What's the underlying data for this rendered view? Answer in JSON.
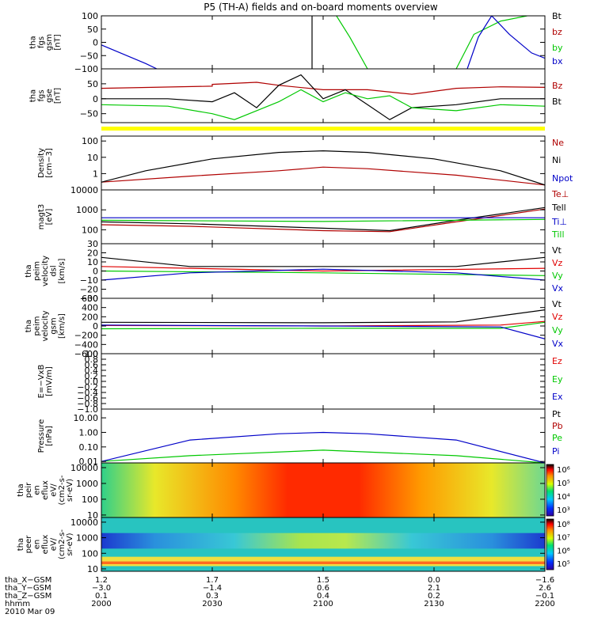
{
  "title": "P5 (TH-A) fields and on-board moments overview",
  "chart_data": [
    {
      "type": "line",
      "id": "fgs_gsm",
      "ylabel": [
        "tha",
        "fgs",
        "gsm",
        "[nT]"
      ],
      "ylim": [
        -100,
        100
      ],
      "yticks": [
        {
          "v": 100,
          "t": "100"
        },
        {
          "v": 50,
          "t": "50"
        },
        {
          "v": 0,
          "t": "0"
        },
        {
          "v": -50,
          "t": "−50"
        },
        {
          "v": -100,
          "t": "−100"
        }
      ],
      "series": [
        {
          "name": "Bt",
          "color": "#000000",
          "points": [
            [
              0.475,
              100
            ],
            [
              0.475,
              -100
            ]
          ]
        },
        {
          "name": "bz",
          "color": "#b00000",
          "points": []
        },
        {
          "name": "by",
          "color": "#00c800",
          "points": [
            [
              0.53,
              100
            ],
            [
              0.56,
              20
            ],
            [
              0.6,
              -100
            ],
            null,
            [
              0.8,
              -100
            ],
            [
              0.84,
              30
            ],
            [
              0.9,
              80
            ],
            [
              0.96,
              100
            ]
          ]
        },
        {
          "name": "bx",
          "color": "#0000c8",
          "points": [
            [
              0,
              -10
            ],
            [
              0.05,
              -45
            ],
            [
              0.1,
              -80
            ],
            [
              0.125,
              -100
            ],
            null,
            [
              0.825,
              -100
            ],
            [
              0.85,
              20
            ],
            [
              0.88,
              100
            ],
            null,
            [
              0.88,
              100
            ],
            [
              0.92,
              30
            ],
            [
              0.97,
              -40
            ],
            [
              1,
              -60
            ]
          ]
        }
      ]
    },
    {
      "type": "line",
      "id": "fgs_gse",
      "ylabel": [
        "tha",
        "fgs",
        "gse",
        "[nT]"
      ],
      "ylim": [
        -80,
        100
      ],
      "yticks": [
        {
          "v": 50,
          "t": "50"
        },
        {
          "v": 0,
          "t": "0"
        },
        {
          "v": -50,
          "t": "−50"
        }
      ],
      "series": [
        {
          "name": "Bz",
          "color": "#b00000",
          "points": [
            [
              0,
              35
            ],
            [
              0.25,
              42
            ],
            [
              0.25,
              48
            ],
            [
              0.35,
              55
            ],
            [
              0.4,
              45
            ],
            [
              0.5,
              30
            ],
            [
              0.6,
              30
            ],
            [
              0.7,
              15
            ],
            [
              0.8,
              35
            ],
            [
              0.9,
              40
            ],
            [
              1,
              38
            ]
          ]
        },
        {
          "name": "Bt",
          "color": "#000000",
          "points": [
            [
              0,
              0
            ],
            [
              0.15,
              0
            ],
            [
              0.25,
              -10
            ],
            [
              0.3,
              20
            ],
            [
              0.35,
              -30
            ],
            [
              0.4,
              45
            ],
            [
              0.45,
              80
            ],
            [
              0.5,
              0
            ],
            [
              0.55,
              30
            ],
            [
              0.6,
              -20
            ],
            [
              0.65,
              -70
            ],
            [
              0.7,
              -30
            ],
            [
              0.8,
              -20
            ],
            [
              0.9,
              0
            ],
            [
              1,
              0
            ]
          ]
        },
        {
          "name": "Bx",
          "color": "#00c800",
          "points": [
            [
              0,
              -20
            ],
            [
              0.15,
              -25
            ],
            [
              0.25,
              -50
            ],
            [
              0.3,
              -70
            ],
            [
              0.35,
              -40
            ],
            [
              0.4,
              -10
            ],
            [
              0.45,
              30
            ],
            [
              0.5,
              -10
            ],
            [
              0.55,
              20
            ],
            [
              0.6,
              0
            ],
            [
              0.65,
              10
            ],
            [
              0.7,
              -30
            ],
            [
              0.8,
              -40
            ],
            [
              0.9,
              -20
            ],
            [
              1,
              -25
            ]
          ]
        }
      ],
      "flag_color": "#ffff00"
    },
    {
      "type": "line",
      "id": "density",
      "scale": "log",
      "ylabel": [
        "Density",
        "[cm−3]"
      ],
      "ylim": [
        0.1,
        200
      ],
      "yticks": [
        {
          "v": 100,
          "t": "100"
        },
        {
          "v": 10,
          "t": "10"
        },
        {
          "v": 1,
          "t": "1"
        }
      ],
      "series": [
        {
          "name": "Ne",
          "color": "#b00000",
          "points": [
            [
              0,
              0.3
            ],
            [
              0.2,
              0.7
            ],
            [
              0.4,
              1.5
            ],
            [
              0.5,
              2.5
            ],
            [
              0.6,
              2.0
            ],
            [
              0.8,
              0.8
            ],
            [
              1,
              0.2
            ]
          ]
        },
        {
          "name": "Ni",
          "color": "#000000",
          "points": [
            [
              0,
              0.3
            ],
            [
              0.1,
              1.5
            ],
            [
              0.25,
              8
            ],
            [
              0.4,
              20
            ],
            [
              0.5,
              25
            ],
            [
              0.6,
              20
            ],
            [
              0.75,
              8
            ],
            [
              0.9,
              1.5
            ],
            [
              1,
              0.2
            ]
          ]
        },
        {
          "name": "Npot",
          "color": "#0000c8",
          "points": []
        }
      ]
    },
    {
      "type": "line",
      "id": "temperature",
      "scale": "log",
      "ylabel": [
        "magt3",
        "[eV]"
      ],
      "ylim": [
        20,
        10000
      ],
      "yticks": [
        {
          "v": 10000,
          "t": "10000"
        },
        {
          "v": 1000,
          "t": "1000"
        },
        {
          "v": 100,
          "t": "100"
        }
      ],
      "series": [
        {
          "name": "Te⊥",
          "color": "#b00000",
          "points": [
            [
              0,
              180
            ],
            [
              0.2,
              150
            ],
            [
              0.5,
              90
            ],
            [
              0.65,
              80
            ],
            [
              0.8,
              250
            ],
            [
              1,
              1100
            ]
          ]
        },
        {
          "name": "Tell",
          "color": "#000000",
          "points": [
            [
              0,
              250
            ],
            [
              0.2,
              200
            ],
            [
              0.5,
              120
            ],
            [
              0.65,
              90
            ],
            [
              0.8,
              300
            ],
            [
              1,
              1300
            ]
          ]
        },
        {
          "name": "Ti⊥",
          "color": "#0000c8",
          "points": [
            [
              0,
              400
            ],
            [
              1,
              400
            ]
          ]
        },
        {
          "name": "Till",
          "color": "#00c800",
          "points": [
            [
              0,
              300
            ],
            [
              0.5,
              260
            ],
            [
              1,
              330
            ]
          ]
        }
      ]
    },
    {
      "type": "line",
      "id": "velocity_dsl",
      "ylabel": [
        "tha",
        "peim",
        "velocity",
        "dsl",
        "[km/s]"
      ],
      "ylim": [
        -30,
        30
      ],
      "yticks": [
        {
          "v": 30,
          "t": "30"
        },
        {
          "v": 20,
          "t": "20"
        },
        {
          "v": 10,
          "t": "10"
        },
        {
          "v": 0,
          "t": "0"
        },
        {
          "v": -10,
          "t": "−10"
        },
        {
          "v": -20,
          "t": "−20"
        },
        {
          "v": -30,
          "t": "−30"
        }
      ],
      "series": [
        {
          "name": "Vt",
          "color": "#000000",
          "points": [
            [
              0,
              15
            ],
            [
              0.2,
              5
            ],
            [
              0.5,
              5
            ],
            [
              0.8,
              5
            ],
            [
              1,
              15
            ]
          ]
        },
        {
          "name": "Vz",
          "color": "#e00000",
          "points": [
            [
              0,
              5
            ],
            [
              0.5,
              0
            ],
            [
              1,
              3
            ]
          ]
        },
        {
          "name": "Vy",
          "color": "#00c800",
          "points": [
            [
              0,
              0
            ],
            [
              0.5,
              -2
            ],
            [
              1,
              -5
            ]
          ]
        },
        {
          "name": "Vx",
          "color": "#0000c8",
          "points": [
            [
              0,
              -10
            ],
            [
              0.2,
              -2
            ],
            [
              0.5,
              2
            ],
            [
              0.8,
              -2
            ],
            [
              1,
              -10
            ]
          ]
        }
      ]
    },
    {
      "type": "line",
      "id": "velocity_gsm",
      "ylabel": [
        "tha",
        "peim",
        "velocity",
        "gsm",
        "[km/s]"
      ],
      "ylim": [
        -600,
        600
      ],
      "yticks": [
        {
          "v": 600,
          "t": "600"
        },
        {
          "v": 400,
          "t": "400"
        },
        {
          "v": 200,
          "t": "200"
        },
        {
          "v": 0,
          "t": "0"
        },
        {
          "v": -200,
          "t": "−200"
        },
        {
          "v": -400,
          "t": "−400"
        },
        {
          "v": -600,
          "t": "−600"
        }
      ],
      "series": [
        {
          "name": "Vt",
          "color": "#000000",
          "points": [
            [
              0,
              80
            ],
            [
              0.5,
              70
            ],
            [
              0.8,
              90
            ],
            [
              1,
              350
            ]
          ]
        },
        {
          "name": "Vz",
          "color": "#e00000",
          "points": [
            [
              0,
              10
            ],
            [
              0.5,
              0
            ],
            [
              0.9,
              20
            ],
            [
              1,
              100
            ]
          ]
        },
        {
          "name": "Vy",
          "color": "#00c800",
          "points": [
            [
              0,
              -60
            ],
            [
              0.5,
              -50
            ],
            [
              0.9,
              -50
            ],
            [
              1,
              80
            ]
          ]
        },
        {
          "name": "Vx",
          "color": "#0000c8",
          "points": [
            [
              0,
              20
            ],
            [
              0.5,
              0
            ],
            [
              0.9,
              -20
            ],
            [
              1,
              -280
            ]
          ]
        }
      ]
    },
    {
      "type": "line",
      "id": "efield",
      "ylabel": [
        "E=−VxB",
        "[mV/m]"
      ],
      "ylim": [
        -1,
        1
      ],
      "yticks": [
        {
          "v": 1,
          "t": "1.0"
        },
        {
          "v": 0.8,
          "t": "0.8"
        },
        {
          "v": 0.6,
          "t": "0.6"
        },
        {
          "v": 0.4,
          "t": "0.4"
        },
        {
          "v": 0.2,
          "t": "0.2"
        },
        {
          "v": 0,
          "t": "0.0"
        },
        {
          "v": -0.2,
          "t": "−0.2"
        },
        {
          "v": -0.4,
          "t": "−0.4"
        },
        {
          "v": -0.6,
          "t": "−0.6"
        },
        {
          "v": -0.8,
          "t": "−0.8"
        },
        {
          "v": -1,
          "t": "−1.0"
        }
      ],
      "series": [
        {
          "name": "Ez",
          "color": "#e00000",
          "points": []
        },
        {
          "name": "Ey",
          "color": "#00c800",
          "points": []
        },
        {
          "name": "Ex",
          "color": "#0000c8",
          "points": []
        }
      ]
    },
    {
      "type": "line",
      "id": "pressure",
      "scale": "log",
      "ylabel": [
        "Pressure",
        "[nPa]"
      ],
      "ylim": [
        0.008,
        40
      ],
      "yticks": [
        {
          "v": 10,
          "t": "10.00"
        },
        {
          "v": 1,
          "t": "1.00"
        },
        {
          "v": 0.1,
          "t": "0.10"
        },
        {
          "v": 0.01,
          "t": "0.01"
        }
      ],
      "series": [
        {
          "name": "Pt",
          "color": "#000000",
          "points": []
        },
        {
          "name": "Pb",
          "color": "#b00000",
          "points": []
        },
        {
          "name": "Pe",
          "color": "#00c800",
          "points": [
            [
              0,
              0.01
            ],
            [
              0.2,
              0.025
            ],
            [
              0.5,
              0.06
            ],
            [
              0.8,
              0.025
            ],
            [
              1,
              0.008
            ]
          ]
        },
        {
          "name": "Pi",
          "color": "#0000c8",
          "points": [
            [
              0,
              0.01
            ],
            [
              0.2,
              0.3
            ],
            [
              0.4,
              0.8
            ],
            [
              0.5,
              1.0
            ],
            [
              0.6,
              0.8
            ],
            [
              0.8,
              0.3
            ],
            [
              1,
              0.008
            ]
          ]
        }
      ]
    },
    {
      "type": "heatmap",
      "id": "peir_spec",
      "ylabel": [
        "tha",
        "peir",
        "en",
        "eflux",
        "eV/",
        "(cm2-s-",
        "sr-eV)"
      ],
      "ylim": [
        7,
        20000
      ],
      "yticks": [
        {
          "v": 10000,
          "t": "10000"
        },
        {
          "v": 1000,
          "t": "1000"
        },
        {
          "v": 100,
          "t": "100"
        },
        {
          "v": 10,
          "t": "10"
        }
      ],
      "colorbar": {
        "labels": [
          "10⁶",
          "10⁵",
          "10⁴",
          "10³"
        ],
        "range": [
          "10²",
          "10⁶"
        ]
      }
    },
    {
      "type": "heatmap",
      "id": "peer_spec",
      "ylabel": [
        "tha",
        "peer",
        "en",
        "eflux",
        "eV/",
        "(cm2-s-",
        "sr-eV)"
      ],
      "ylim": [
        7,
        20000
      ],
      "yticks": [
        {
          "v": 10000,
          "t": "10000"
        },
        {
          "v": 1000,
          "t": "1000"
        },
        {
          "v": 100,
          "t": "100"
        },
        {
          "v": 10,
          "t": "10"
        }
      ],
      "colorbar": {
        "labels": [
          "10⁸",
          "10⁷",
          "10⁶",
          "10⁵"
        ],
        "range": [
          "10⁵",
          "10⁸"
        ]
      }
    }
  ],
  "x_axis": {
    "rows": [
      {
        "label": "tha_X−GSM",
        "values": [
          "1.2",
          "1.7",
          "1.5",
          "0.0",
          "−1.6"
        ]
      },
      {
        "label": "tha_Y−GSM",
        "values": [
          "−3.0",
          "−1.4",
          "0.6",
          "2.1",
          "2.6"
        ]
      },
      {
        "label": "tha_Z−GSM",
        "values": [
          "0.1",
          "0.3",
          "0.4",
          "0.2",
          "−0.1"
        ]
      },
      {
        "label": "hhmm",
        "values": [
          "2000",
          "2030",
          "2100",
          "2130",
          "2200"
        ]
      }
    ],
    "date": "2010 Mar 09"
  }
}
